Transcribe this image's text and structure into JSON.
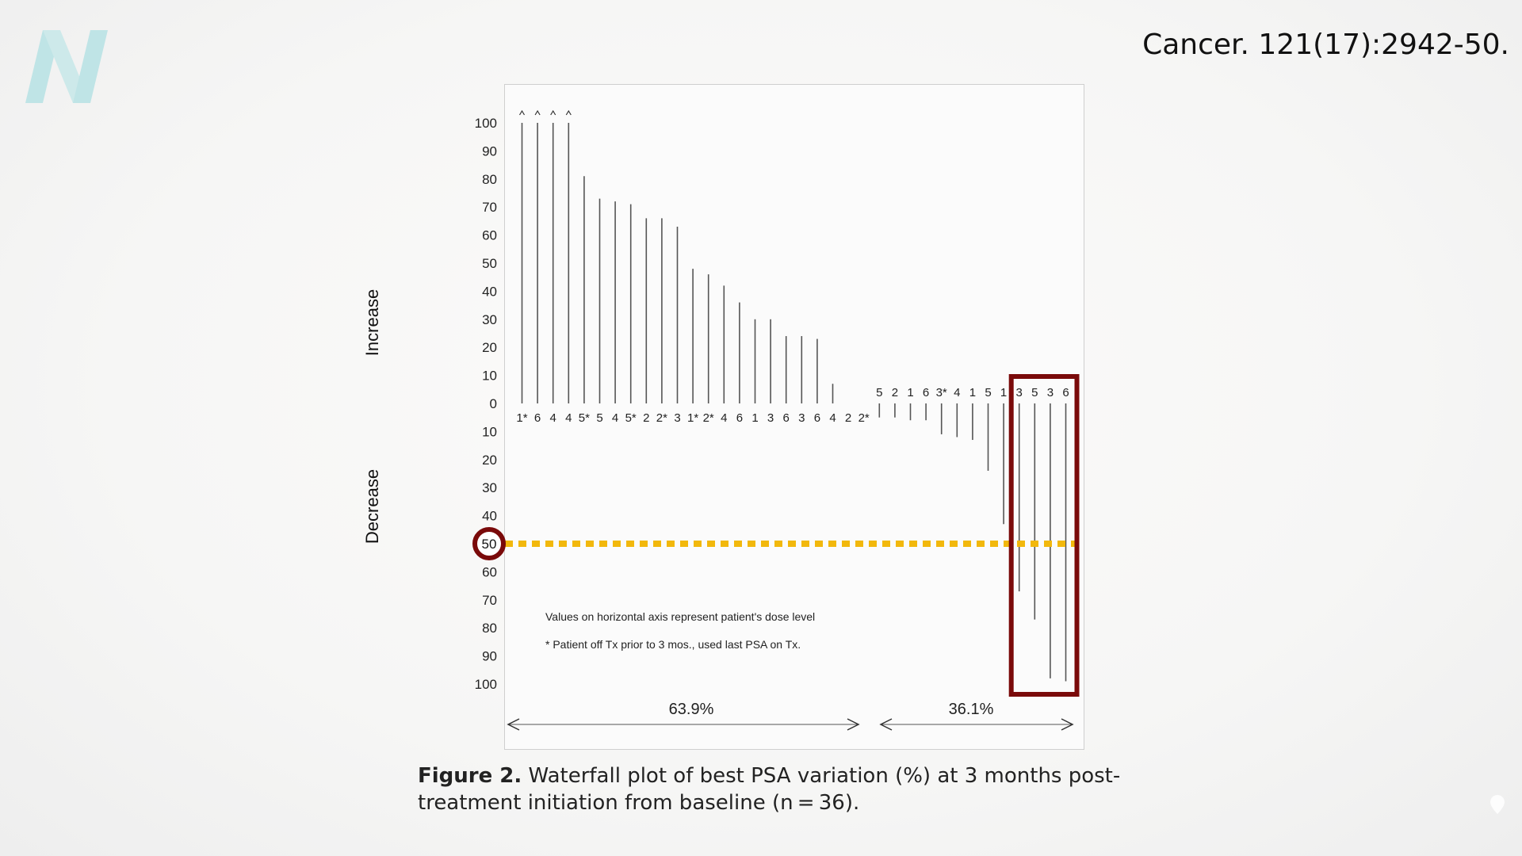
{
  "citation": "Cancer. 121(17):2942-50.",
  "icons": {
    "logo": "N-logo-icon",
    "corner": "pin-icon"
  },
  "colors": {
    "logo": "#bfe4e6",
    "bar": "#555555",
    "threshold_line": "#f2b80c",
    "highlight": "#7a0a0a",
    "text": "#222222"
  },
  "caption": {
    "label": "Figure 2.",
    "text": "Waterfall plot of best PSA variation (%) at 3 months post-treatment initiation from baseline (n = 36)."
  },
  "chart_data": {
    "type": "bar",
    "orientation": "vertical-lines",
    "ylabel_positive": "Increase",
    "ylabel_negative": "Decrease",
    "ylim": [
      -100,
      100
    ],
    "y_ticks_positive": [
      "100",
      "90",
      "80",
      "70",
      "60",
      "50",
      "40",
      "30",
      "20",
      "10",
      "0"
    ],
    "y_ticks_negative": [
      "10",
      "20",
      "30",
      "40",
      "50",
      "60",
      "70",
      "80",
      "90",
      "100"
    ],
    "categories": [
      "1*",
      "6",
      "4",
      "4",
      "5*",
      "5",
      "4",
      "5*",
      "2",
      "2*",
      "3",
      "1*",
      "2*",
      "4",
      "6",
      "1",
      "3",
      "6",
      "3",
      "6",
      "4",
      "2",
      "2*",
      "5",
      "2",
      "1",
      "6",
      "3*",
      "4",
      "1",
      "5",
      "1",
      "3",
      "5",
      "3",
      "6"
    ],
    "values": [
      100,
      100,
      100,
      100,
      81,
      73,
      72,
      71,
      66,
      66,
      63,
      48,
      46,
      42,
      36,
      30,
      30,
      24,
      24,
      23,
      7,
      0,
      0,
      -5,
      -5,
      -6,
      -6,
      -11,
      -12,
      -13,
      -24,
      -43,
      -67,
      -77,
      -98,
      -99
    ],
    "capped_arrows": [
      0,
      1,
      2,
      3
    ],
    "annotations": [
      "Values on horizontal axis represent patient's dose level",
      "* Patient off Tx prior to 3 mos., used last PSA on Tx."
    ],
    "bracket_labels": [
      "63.9%",
      "36.1%"
    ],
    "threshold": {
      "value": -50,
      "label": "50"
    },
    "highlighted_count": 4
  }
}
